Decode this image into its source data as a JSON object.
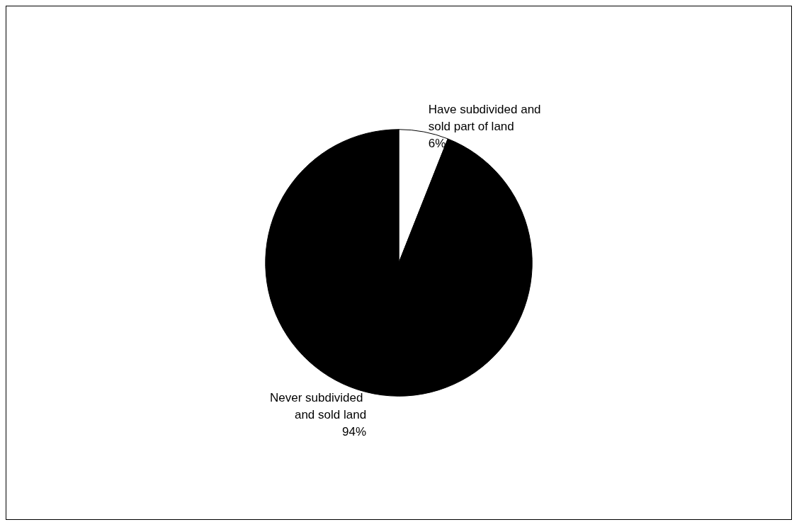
{
  "chart_data": {
    "type": "pie",
    "categories": [
      "Have subdivided and sold part of land",
      "Never subdivided and sold land"
    ],
    "values": [
      6,
      94
    ],
    "value_labels": [
      "6%",
      "94%"
    ],
    "colors": [
      "#ffffff",
      "#000000"
    ],
    "data_labels": true,
    "legend": false
  }
}
